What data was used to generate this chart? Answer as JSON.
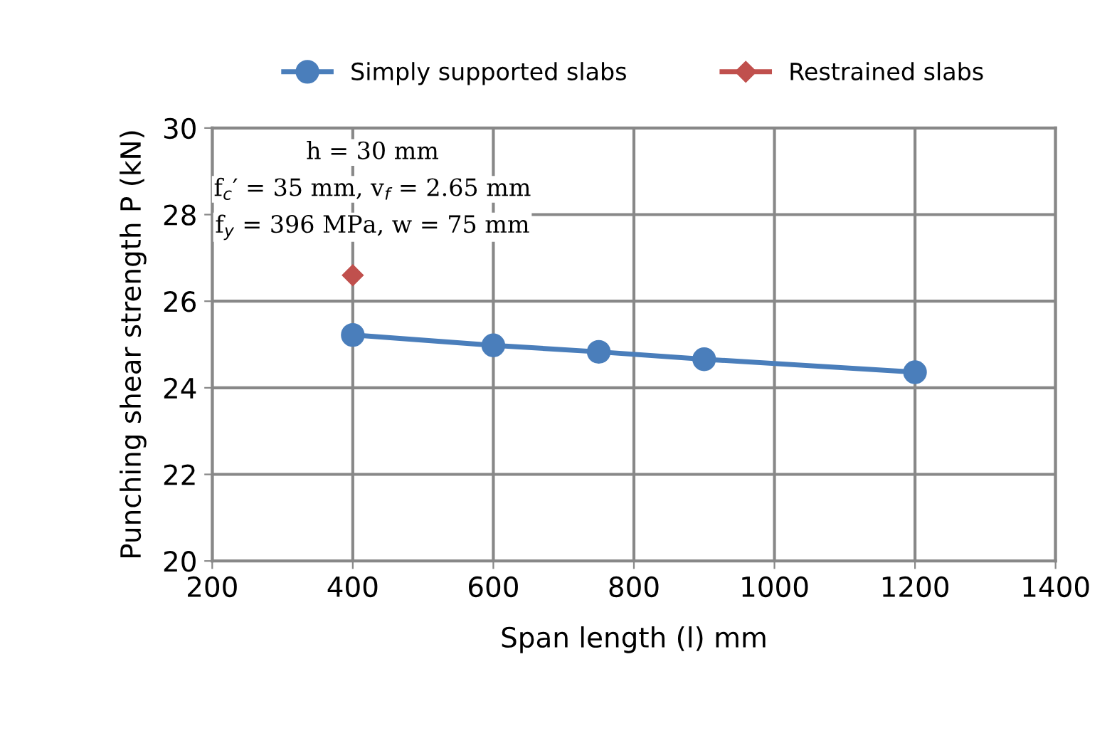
{
  "chart_data": {
    "type": "line",
    "xlabel": "Span length (l) mm",
    "ylabel": "Punching shear strength P (kN)",
    "xlim": [
      200,
      1400
    ],
    "xticks": [
      200,
      400,
      600,
      800,
      1000,
      1200,
      1400
    ],
    "ylim": [
      20,
      30
    ],
    "yticks": [
      20,
      22,
      24,
      26,
      28,
      30
    ],
    "grid": true,
    "legend": "top",
    "annotations": [
      "h = 30 mm",
      "f$_{c}$′ = 35 mm, v$_{f}$ = 2.65 mm",
      "f$_{y}$ = 396 MPa, w = 75 mm"
    ],
    "series": [
      {
        "name": "Simply supported slabs",
        "color": "#4a7ebb",
        "marker": "circle",
        "x": [
          400,
          600,
          750,
          900,
          1200
        ],
        "values": [
          25.22,
          24.98,
          24.83,
          24.66,
          24.36
        ]
      },
      {
        "name": "Restrained slabs",
        "color": "#c0504d",
        "marker": "diamond",
        "x": [
          400
        ],
        "values": [
          26.6
        ]
      }
    ]
  }
}
